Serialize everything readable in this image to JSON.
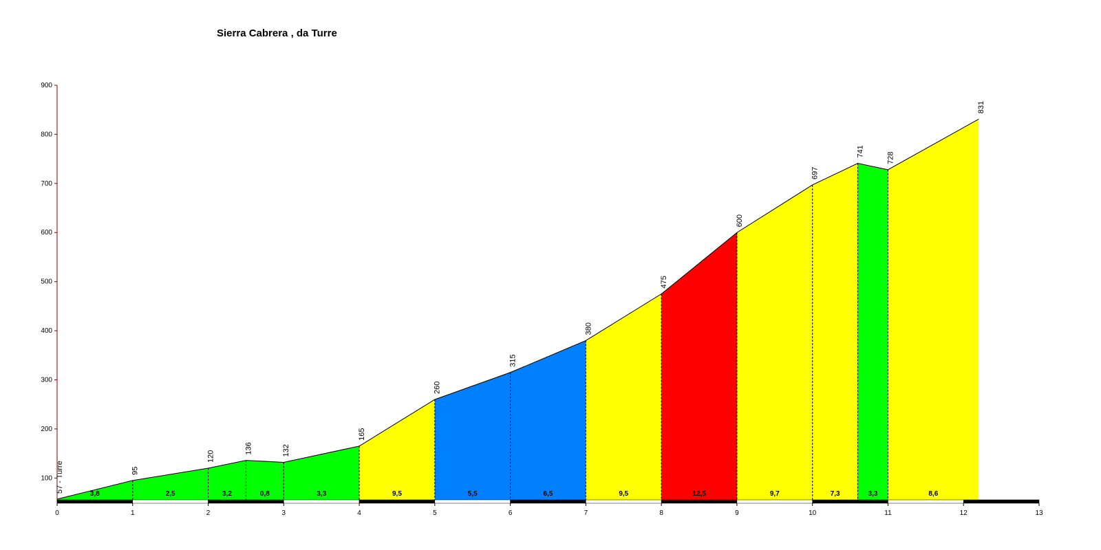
{
  "chart_data": {
    "type": "area",
    "title": "Sierra Cabrera , da Turre",
    "x": [
      0,
      1,
      2,
      2.5,
      3,
      4,
      5,
      6,
      7,
      8,
      9,
      10,
      10.6,
      11,
      12.2
    ],
    "values": [
      57,
      95,
      120,
      136,
      132,
      165,
      260,
      315,
      380,
      475,
      600,
      697,
      741,
      728,
      831
    ],
    "value_labels": [
      "57 - Turre",
      "95",
      "120",
      "136",
      "132",
      "165",
      "260",
      "315",
      "380",
      "475",
      "600",
      "697",
      "741",
      "728",
      "831"
    ],
    "segments": [
      {
        "value": 3.8,
        "label": "3,8",
        "color": "#00ff00"
      },
      {
        "value": 2.5,
        "label": "2,5",
        "color": "#00ff00"
      },
      {
        "value": 3.2,
        "label": "3,2",
        "color": "#00ff00"
      },
      {
        "value": 0.8,
        "label": "0,8",
        "color": "#00ff00"
      },
      {
        "value": 3.3,
        "label": "3,3",
        "color": "#00ff00"
      },
      {
        "value": 9.5,
        "label": "9,5",
        "color": "#ffff00"
      },
      {
        "value": 5.5,
        "label": "5,5",
        "color": "#0080ff"
      },
      {
        "value": 6.5,
        "label": "6,5",
        "color": "#0080ff"
      },
      {
        "value": 9.5,
        "label": "9,5",
        "color": "#ffff00"
      },
      {
        "value": 12.5,
        "label": "12,5",
        "color": "#ff0000"
      },
      {
        "value": 9.7,
        "label": "9,7",
        "color": "#ffff00"
      },
      {
        "value": 7.3,
        "label": "7,3",
        "color": "#ffff00"
      },
      {
        "value": 3.3,
        "label": "3,3",
        "color": "#00ff00"
      },
      {
        "value": 8.6,
        "label": "8,6",
        "color": "#ffff00"
      }
    ],
    "xlim": [
      0,
      13
    ],
    "xticks": [
      0,
      1,
      2,
      3,
      4,
      5,
      6,
      7,
      8,
      9,
      10,
      11,
      12,
      13
    ],
    "ylim": [
      50,
      900
    ],
    "yticks": [
      100,
      200,
      300,
      400,
      500,
      600,
      700,
      800,
      900
    ]
  }
}
